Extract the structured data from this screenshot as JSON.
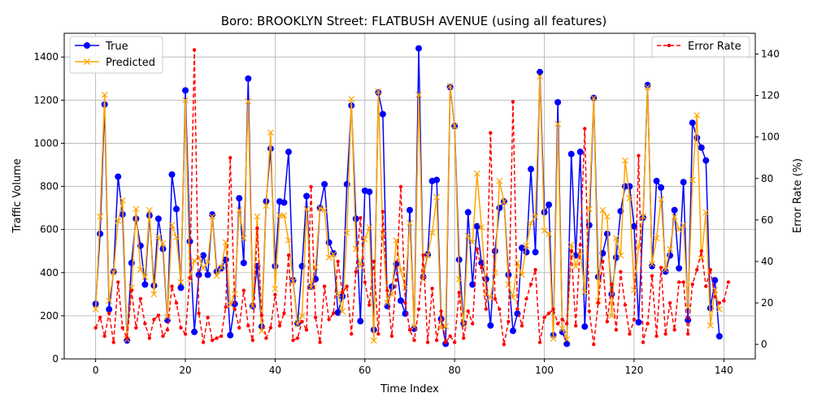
{
  "chart_data": {
    "type": "line",
    "title": "Boro: BROOKLYN Street: FLATBUSH AVENUE (using all features)",
    "xlabel": "Time Index",
    "ylabel": "Traffic Volume",
    "y2label": "Error Rate (%)",
    "xlim": [
      -7,
      147
    ],
    "ylim": [
      0,
      1510
    ],
    "y2lim": [
      -7,
      150
    ],
    "xticks": [
      0,
      20,
      40,
      60,
      80,
      100,
      120,
      140
    ],
    "yticks": [
      0,
      200,
      400,
      600,
      800,
      1000,
      1200,
      1400
    ],
    "y2ticks": [
      0,
      20,
      40,
      60,
      80,
      100,
      120,
      140
    ],
    "grid": true,
    "legend_left": {
      "placement": "upper-left",
      "entries": [
        "True",
        "Predicted"
      ]
    },
    "legend_right": {
      "placement": "upper-right",
      "entries": [
        "Error Rate"
      ]
    },
    "colors": {
      "true": "#0000ff",
      "predicted": "#ffa500",
      "error": "#ff0000"
    },
    "x_start": 0,
    "series": [
      {
        "name": "True",
        "axis": "left",
        "style": "line-circle",
        "values": [
          255,
          580,
          1180,
          230,
          405,
          845,
          670,
          85,
          445,
          650,
          525,
          345,
          665,
          340,
          650,
          510,
          180,
          855,
          695,
          330,
          1245,
          545,
          125,
          390,
          480,
          390,
          670,
          405,
          420,
          460,
          110,
          255,
          745,
          445,
          1300,
          245,
          430,
          150,
          730,
          975,
          430,
          730,
          725,
          960,
          365,
          165,
          430,
          755,
          335,
          370,
          700,
          810,
          540,
          490,
          215,
          290,
          810,
          1175,
          650,
          175,
          780,
          775,
          135,
          1235,
          1135,
          245,
          335,
          440,
          270,
          210,
          690,
          140,
          1440,
          380,
          485,
          825,
          830,
          185,
          70,
          1260,
          1080,
          460,
          165,
          680,
          345,
          615,
          445,
          370,
          155,
          500,
          700,
          730,
          390,
          130,
          210,
          515,
          495,
          880,
          495,
          1330,
          680,
          715,
          110,
          1190,
          125,
          70,
          950,
          480,
          960,
          150,
          620,
          1210,
          380,
          490,
          580,
          300,
          470,
          685,
          800,
          800,
          615,
          170,
          655,
          1270,
          430,
          825,
          795,
          405,
          480,
          690,
          420,
          820,
          180,
          1095,
          1025,
          980,
          920,
          235,
          365,
          105
        ]
      },
      {
        "name": "Predicted",
        "axis": "left",
        "style": "line-x",
        "values": [
          230,
          660,
          1225,
          270,
          400,
          640,
          735,
          90,
          330,
          695,
          415,
          380,
          690,
          300,
          565,
          535,
          195,
          620,
          565,
          355,
          1200,
          370,
          455,
          470,
          420,
          450,
          660,
          385,
          425,
          540,
          250,
          300,
          690,
          560,
          1195,
          245,
          660,
          130,
          710,
          1050,
          325,
          665,
          665,
          550,
          360,
          160,
          200,
          695,
          330,
          425,
          700,
          690,
          470,
          485,
          300,
          220,
          585,
          1205,
          510,
          430,
          555,
          610,
          85,
          1240,
          580,
          260,
          300,
          550,
          410,
          330,
          630,
          150,
          1225,
          370,
          480,
          585,
          750,
          145,
          150,
          1265,
          1080,
          370,
          160,
          570,
          540,
          860,
          610,
          305,
          285,
          400,
          825,
          730,
          345,
          285,
          445,
          390,
          525,
          630,
          660,
          1310,
          595,
          580,
          95,
          1090,
          140,
          90,
          530,
          430,
          500,
          310,
          695,
          1210,
          270,
          690,
          660,
          200,
          560,
          480,
          920,
          745,
          320,
          520,
          660,
          1260,
          440,
          560,
          740,
          415,
          510,
          660,
          600,
          620,
          240,
          830,
          1130,
          465,
          680,
          155,
          320,
          230
        ]
      },
      {
        "name": "Error Rate",
        "axis": "right",
        "style": "dashed-dot",
        "values": [
          8,
          13,
          4,
          15,
          1,
          30,
          8,
          3,
          26,
          8,
          22,
          10,
          3,
          12,
          14,
          4,
          7,
          28,
          20,
          8,
          5,
          32,
          142,
          15,
          1,
          13,
          2,
          3,
          4,
          18,
          90,
          17,
          8,
          26,
          9,
          2,
          56,
          14,
          3,
          8,
          24,
          9,
          15,
          43,
          2,
          3,
          11,
          7,
          76,
          13,
          1,
          28,
          12,
          15,
          40,
          25,
          28,
          5,
          35,
          61,
          30,
          19,
          40,
          5,
          64,
          26,
          4,
          31,
          76,
          20,
          7,
          2,
          17,
          43,
          1,
          27,
          2,
          16,
          1,
          4,
          1,
          25,
          3,
          16,
          10,
          46,
          37,
          17,
          102,
          22,
          17,
          0,
          11,
          117,
          17,
          9,
          22,
          29,
          36,
          1,
          13,
          15,
          17,
          10,
          12,
          10,
          45,
          9,
          48,
          104,
          16,
          0,
          20,
          40,
          11,
          29,
          7,
          35,
          19,
          5,
          12,
          91,
          1,
          10,
          33,
          4,
          37,
          5,
          20,
          7,
          30,
          30,
          5,
          29,
          36,
          45,
          28,
          36,
          23,
          20,
          21,
          30
        ]
      }
    ]
  }
}
